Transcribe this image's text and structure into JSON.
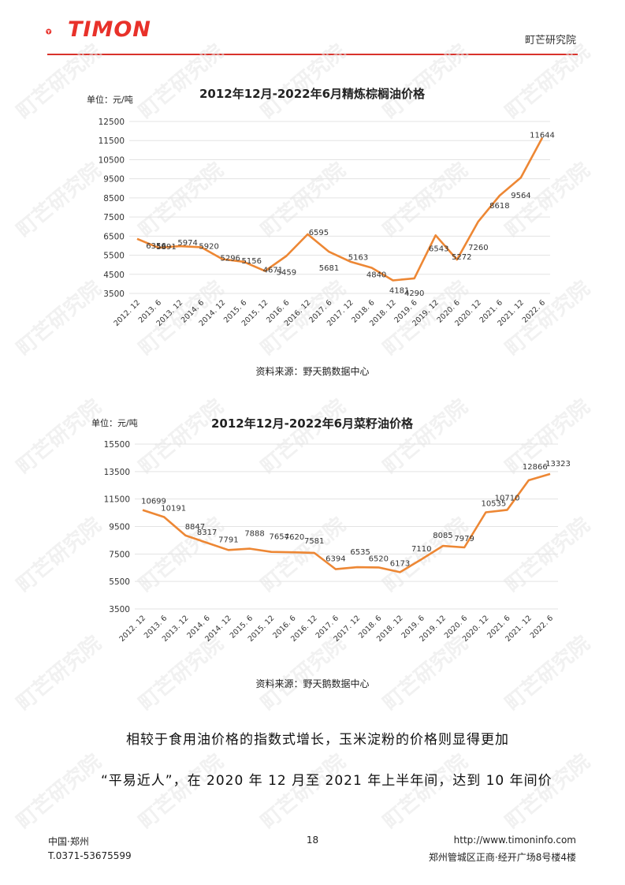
{
  "header": {
    "logo_text": "TIMON",
    "institute": "町芒研究院"
  },
  "watermark": {
    "text": "町芒研究院"
  },
  "charts": [
    {
      "unit": "单位：元/吨",
      "source": "资料来源：野天鹅数据中心",
      "chart_data": {
        "type": "line",
        "title": "2012年12月-2022年6月精炼棕榈油价格",
        "categories": [
          "2012. 12",
          "2013. 6",
          "2013. 12",
          "2014. 6",
          "2014. 12",
          "2015. 6",
          "2015. 12",
          "2016. 6",
          "2016. 12",
          "2017. 6",
          "2017. 12",
          "2018. 6",
          "2018. 12",
          "2019. 6",
          "2019. 12",
          "2020. 6",
          "2020. 12",
          "2021. 6",
          "2021. 12",
          "2022. 6"
        ],
        "series": [
          {
            "values": [
              6356,
              5891,
              5974,
              5920,
              5296,
              5156,
              4671,
              5459,
              6595,
              5681,
              5163,
              4840,
              4181,
              4290,
              6543,
              5272,
              7260,
              8618,
              9564,
              11644
            ]
          }
        ],
        "yticks": [
          3500,
          4500,
          5500,
          6500,
          7500,
          8500,
          9500,
          10500,
          11500,
          12500
        ],
        "ylim": [
          3500,
          12500
        ],
        "color": "#ed8734"
      }
    },
    {
      "unit": "单位：元/吨",
      "source": "资料来源：野天鹅数据中心",
      "chart_data": {
        "type": "line",
        "title": "2012年12月-2022年6月菜籽油价格",
        "categories": [
          "2012. 12",
          "2013. 6",
          "2013. 12",
          "2014. 6",
          "2014. 12",
          "2015. 6",
          "2015. 12",
          "2016. 6",
          "2016. 12",
          "2017. 6",
          "2017. 12",
          "2018. 6",
          "2018. 12",
          "2019. 6",
          "2019. 12",
          "2020. 6",
          "2020. 12",
          "2021. 6",
          "2021. 12",
          "2022. 6"
        ],
        "series": [
          {
            "values": [
              10699,
              10191,
              8847,
              8317,
              7791,
              7888,
              7654,
              7620,
              7581,
              6394,
              6535,
              6520,
              6173,
              7110,
              8085,
              7979,
              10535,
              10710,
              12866,
              13323
            ]
          }
        ],
        "yticks": [
          3500,
          5500,
          7500,
          9500,
          11500,
          13500,
          15500
        ],
        "ylim": [
          3500,
          15500
        ],
        "color": "#ed8734"
      }
    }
  ],
  "paragraph": {
    "line1": "相较于食用油价格的指数式增长，玉米淀粉的价格则显得更加",
    "line2": "“平易近人”，在 2020 年 12 月至 2021 年上半年间，达到 10 年间价"
  },
  "footer": {
    "city": "中国·郑州",
    "phone": "T.0371-53675599",
    "page": "18",
    "url": "http://www.timoninfo.com",
    "address": "郑州管城区正商·经开广场8号楼4楼"
  }
}
